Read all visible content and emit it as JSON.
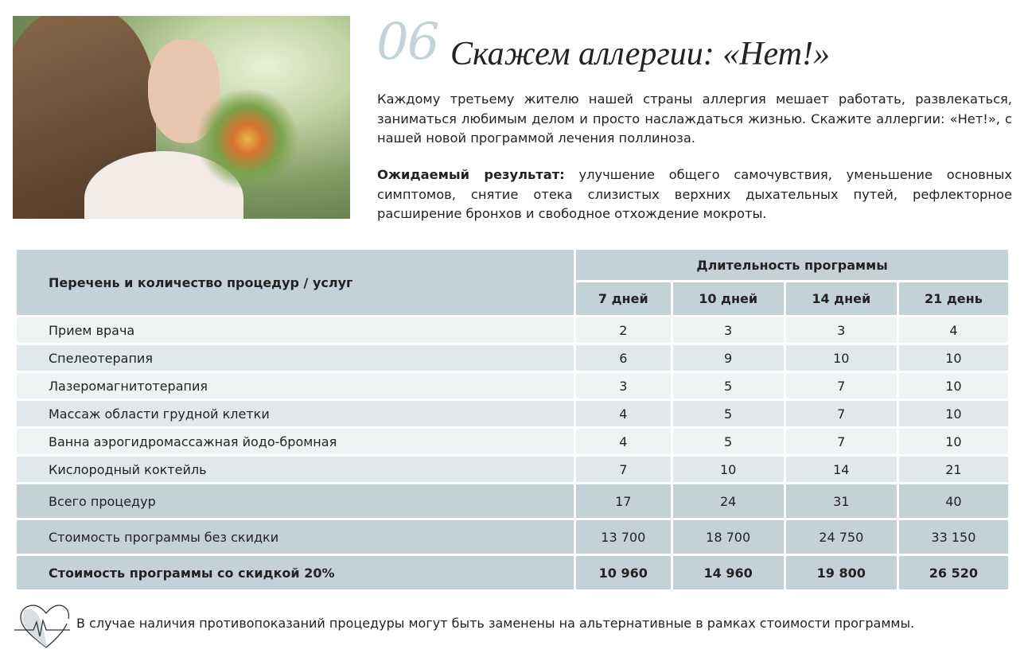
{
  "header": {
    "number": "06",
    "title": "Скажем аллергии: «Нет!»"
  },
  "intro": "Каждому третьему жителю нашей страны аллергия мешает работать, развлекаться, заниматься любимым делом и просто наслаждаться жизнью. Скажите аллергии: «Нет!», с нашей новой программой лечения поллиноза.",
  "result": {
    "label": "Ожидаемый результат:",
    "text": " улучшение общего самочувствия, уменьшение основных симптомов, снятие отека слизистых верхних дыхательных путей, рефлекторное расширение бронхов и свободное отхождение мокроты."
  },
  "table": {
    "col_header": "Перечень и количество процедур / услуг",
    "group_header": "Длительность программы",
    "durations": [
      "7 дней",
      "10 дней",
      "14 дней",
      "21 день"
    ],
    "rows": [
      {
        "name": "Прием врача",
        "values": [
          "2",
          "3",
          "3",
          "4"
        ]
      },
      {
        "name": "Спелеотерапия",
        "values": [
          "6",
          "9",
          "10",
          "10"
        ]
      },
      {
        "name": "Лазеромагнитотерапия",
        "values": [
          "3",
          "5",
          "7",
          "10"
        ]
      },
      {
        "name": "Массаж области грудной клетки",
        "values": [
          "4",
          "5",
          "7",
          "10"
        ]
      },
      {
        "name": "Ванна аэрогидромассажная йодо-бромная",
        "values": [
          "4",
          "5",
          "7",
          "10"
        ]
      },
      {
        "name": "Кислородный коктейль",
        "values": [
          "7",
          "10",
          "14",
          "21"
        ]
      }
    ],
    "totals": [
      {
        "name": "Всего процедур",
        "values": [
          "17",
          "24",
          "31",
          "40"
        ]
      },
      {
        "name": "Стоимость программы без скидки",
        "values": [
          "13 700",
          "18 700",
          "24 750",
          "33 150"
        ]
      },
      {
        "name": "Стоимость программы со скидкой 20%",
        "values": [
          "10 960",
          "14 960",
          "19 800",
          "26 520"
        ]
      }
    ]
  },
  "note": "В случае наличия противопоказаний процедуры могут быть заменены на альтернативные в рамках стоимости программы.",
  "colors": {
    "accent": "#c5d3d8",
    "header_bg": "#c3d2d7",
    "row_light": "#eff3f4",
    "row_alt": "#e1e8eb"
  },
  "icons": {
    "note": "heart-pulse-icon"
  }
}
